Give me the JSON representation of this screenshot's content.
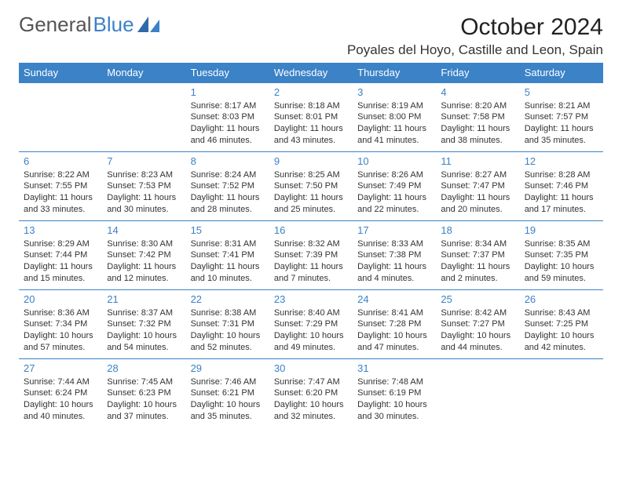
{
  "logo": {
    "text1": "General",
    "text2": "Blue"
  },
  "title": "October 2024",
  "location": "Poyales del Hoyo, Castille and Leon, Spain",
  "colors": {
    "header_bg": "#3b82c7",
    "header_text": "#ffffff",
    "daynum": "#3b82c7",
    "border": "#3b82c7",
    "body_text": "#333333",
    "background": "#ffffff"
  },
  "weekdays": [
    "Sunday",
    "Monday",
    "Tuesday",
    "Wednesday",
    "Thursday",
    "Friday",
    "Saturday"
  ],
  "weeks": [
    [
      null,
      null,
      {
        "d": "1",
        "sr": "Sunrise: 8:17 AM",
        "ss": "Sunset: 8:03 PM",
        "dl1": "Daylight: 11 hours",
        "dl2": "and 46 minutes."
      },
      {
        "d": "2",
        "sr": "Sunrise: 8:18 AM",
        "ss": "Sunset: 8:01 PM",
        "dl1": "Daylight: 11 hours",
        "dl2": "and 43 minutes."
      },
      {
        "d": "3",
        "sr": "Sunrise: 8:19 AM",
        "ss": "Sunset: 8:00 PM",
        "dl1": "Daylight: 11 hours",
        "dl2": "and 41 minutes."
      },
      {
        "d": "4",
        "sr": "Sunrise: 8:20 AM",
        "ss": "Sunset: 7:58 PM",
        "dl1": "Daylight: 11 hours",
        "dl2": "and 38 minutes."
      },
      {
        "d": "5",
        "sr": "Sunrise: 8:21 AM",
        "ss": "Sunset: 7:57 PM",
        "dl1": "Daylight: 11 hours",
        "dl2": "and 35 minutes."
      }
    ],
    [
      {
        "d": "6",
        "sr": "Sunrise: 8:22 AM",
        "ss": "Sunset: 7:55 PM",
        "dl1": "Daylight: 11 hours",
        "dl2": "and 33 minutes."
      },
      {
        "d": "7",
        "sr": "Sunrise: 8:23 AM",
        "ss": "Sunset: 7:53 PM",
        "dl1": "Daylight: 11 hours",
        "dl2": "and 30 minutes."
      },
      {
        "d": "8",
        "sr": "Sunrise: 8:24 AM",
        "ss": "Sunset: 7:52 PM",
        "dl1": "Daylight: 11 hours",
        "dl2": "and 28 minutes."
      },
      {
        "d": "9",
        "sr": "Sunrise: 8:25 AM",
        "ss": "Sunset: 7:50 PM",
        "dl1": "Daylight: 11 hours",
        "dl2": "and 25 minutes."
      },
      {
        "d": "10",
        "sr": "Sunrise: 8:26 AM",
        "ss": "Sunset: 7:49 PM",
        "dl1": "Daylight: 11 hours",
        "dl2": "and 22 minutes."
      },
      {
        "d": "11",
        "sr": "Sunrise: 8:27 AM",
        "ss": "Sunset: 7:47 PM",
        "dl1": "Daylight: 11 hours",
        "dl2": "and 20 minutes."
      },
      {
        "d": "12",
        "sr": "Sunrise: 8:28 AM",
        "ss": "Sunset: 7:46 PM",
        "dl1": "Daylight: 11 hours",
        "dl2": "and 17 minutes."
      }
    ],
    [
      {
        "d": "13",
        "sr": "Sunrise: 8:29 AM",
        "ss": "Sunset: 7:44 PM",
        "dl1": "Daylight: 11 hours",
        "dl2": "and 15 minutes."
      },
      {
        "d": "14",
        "sr": "Sunrise: 8:30 AM",
        "ss": "Sunset: 7:42 PM",
        "dl1": "Daylight: 11 hours",
        "dl2": "and 12 minutes."
      },
      {
        "d": "15",
        "sr": "Sunrise: 8:31 AM",
        "ss": "Sunset: 7:41 PM",
        "dl1": "Daylight: 11 hours",
        "dl2": "and 10 minutes."
      },
      {
        "d": "16",
        "sr": "Sunrise: 8:32 AM",
        "ss": "Sunset: 7:39 PM",
        "dl1": "Daylight: 11 hours",
        "dl2": "and 7 minutes."
      },
      {
        "d": "17",
        "sr": "Sunrise: 8:33 AM",
        "ss": "Sunset: 7:38 PM",
        "dl1": "Daylight: 11 hours",
        "dl2": "and 4 minutes."
      },
      {
        "d": "18",
        "sr": "Sunrise: 8:34 AM",
        "ss": "Sunset: 7:37 PM",
        "dl1": "Daylight: 11 hours",
        "dl2": "and 2 minutes."
      },
      {
        "d": "19",
        "sr": "Sunrise: 8:35 AM",
        "ss": "Sunset: 7:35 PM",
        "dl1": "Daylight: 10 hours",
        "dl2": "and 59 minutes."
      }
    ],
    [
      {
        "d": "20",
        "sr": "Sunrise: 8:36 AM",
        "ss": "Sunset: 7:34 PM",
        "dl1": "Daylight: 10 hours",
        "dl2": "and 57 minutes."
      },
      {
        "d": "21",
        "sr": "Sunrise: 8:37 AM",
        "ss": "Sunset: 7:32 PM",
        "dl1": "Daylight: 10 hours",
        "dl2": "and 54 minutes."
      },
      {
        "d": "22",
        "sr": "Sunrise: 8:38 AM",
        "ss": "Sunset: 7:31 PM",
        "dl1": "Daylight: 10 hours",
        "dl2": "and 52 minutes."
      },
      {
        "d": "23",
        "sr": "Sunrise: 8:40 AM",
        "ss": "Sunset: 7:29 PM",
        "dl1": "Daylight: 10 hours",
        "dl2": "and 49 minutes."
      },
      {
        "d": "24",
        "sr": "Sunrise: 8:41 AM",
        "ss": "Sunset: 7:28 PM",
        "dl1": "Daylight: 10 hours",
        "dl2": "and 47 minutes."
      },
      {
        "d": "25",
        "sr": "Sunrise: 8:42 AM",
        "ss": "Sunset: 7:27 PM",
        "dl1": "Daylight: 10 hours",
        "dl2": "and 44 minutes."
      },
      {
        "d": "26",
        "sr": "Sunrise: 8:43 AM",
        "ss": "Sunset: 7:25 PM",
        "dl1": "Daylight: 10 hours",
        "dl2": "and 42 minutes."
      }
    ],
    [
      {
        "d": "27",
        "sr": "Sunrise: 7:44 AM",
        "ss": "Sunset: 6:24 PM",
        "dl1": "Daylight: 10 hours",
        "dl2": "and 40 minutes."
      },
      {
        "d": "28",
        "sr": "Sunrise: 7:45 AM",
        "ss": "Sunset: 6:23 PM",
        "dl1": "Daylight: 10 hours",
        "dl2": "and 37 minutes."
      },
      {
        "d": "29",
        "sr": "Sunrise: 7:46 AM",
        "ss": "Sunset: 6:21 PM",
        "dl1": "Daylight: 10 hours",
        "dl2": "and 35 minutes."
      },
      {
        "d": "30",
        "sr": "Sunrise: 7:47 AM",
        "ss": "Sunset: 6:20 PM",
        "dl1": "Daylight: 10 hours",
        "dl2": "and 32 minutes."
      },
      {
        "d": "31",
        "sr": "Sunrise: 7:48 AM",
        "ss": "Sunset: 6:19 PM",
        "dl1": "Daylight: 10 hours",
        "dl2": "and 30 minutes."
      },
      null,
      null
    ]
  ]
}
